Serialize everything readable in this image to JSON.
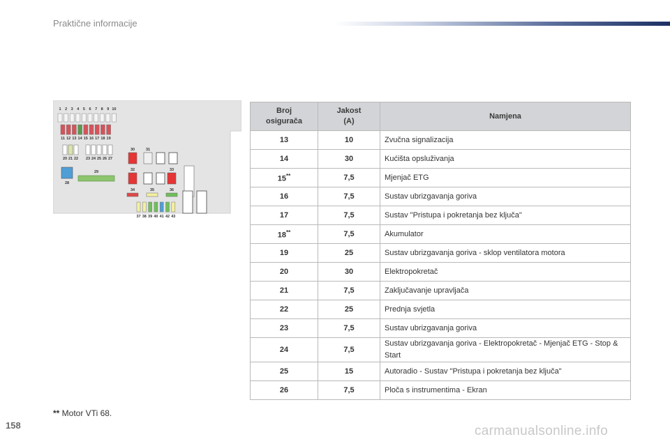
{
  "header": {
    "title": "Praktične informacije"
  },
  "page_number": "158",
  "colors": {
    "header_bar_dark": "#1b2f63",
    "table_header_bg": "#d3d4d7"
  },
  "diagram": {
    "top_row_labels": [
      "1",
      "2",
      "3",
      "4",
      "5",
      "6",
      "7",
      "8",
      "9",
      "10"
    ],
    "second_row_labels": [
      "11",
      "12",
      "13",
      "14",
      "15",
      "16",
      "17",
      "18",
      "19"
    ],
    "third_row_labels": [
      "20",
      "21",
      "22",
      "23",
      "24",
      "25",
      "26",
      "27"
    ],
    "label_28": "28",
    "label_29": "29",
    "right_labels": [
      "30",
      "31",
      "32",
      "33",
      "34",
      "35",
      "36"
    ],
    "bottom_labels": [
      "37",
      "38",
      "39",
      "40",
      "41",
      "42",
      "43"
    ]
  },
  "table": {
    "headers": {
      "col1": "Broj osigurača",
      "col2": "Jakost (A)",
      "col3": "Namjena"
    },
    "rows": [
      {
        "num": "13",
        "amp": "10",
        "use": "Zvučna signalizacija"
      },
      {
        "num": "14",
        "amp": "30",
        "use": "Kućišta opsluživanja"
      },
      {
        "num": "15",
        "mark": "**",
        "amp": "7,5",
        "use": "Mjenjač ETG"
      },
      {
        "num": "16",
        "amp": "7,5",
        "use": "Sustav ubrizgavanja goriva"
      },
      {
        "num": "17",
        "amp": "7,5",
        "use": "Sustav \"Pristupa i pokretanja bez ključa\""
      },
      {
        "num": "18",
        "mark": "**",
        "amp": "7,5",
        "use": "Akumulator"
      },
      {
        "num": "19",
        "amp": "25",
        "use": "Sustav ubrizgavanja goriva - sklop ventilatora motora"
      },
      {
        "num": "20",
        "amp": "30",
        "use": "Elektropokretač"
      },
      {
        "num": "21",
        "amp": "7,5",
        "use": "Zaključavanje upravljača"
      },
      {
        "num": "22",
        "amp": "25",
        "use": "Prednja svjetla"
      },
      {
        "num": "23",
        "amp": "7,5",
        "use": "Sustav ubrizgavanja goriva"
      },
      {
        "num": "24",
        "amp": "7,5",
        "use": "Sustav ubrizgavanja goriva - Elektropokretač - Mjenjač ETG - Stop & Start"
      },
      {
        "num": "25",
        "amp": "15",
        "use": "Autoradio - Sustav \"Pristupa i pokretanja bez ključa\""
      },
      {
        "num": "26",
        "amp": "7,5",
        "use": "Ploča s instrumentima - Ekran"
      }
    ]
  },
  "footnote": {
    "stars": "**",
    "text": " Motor VTi 68."
  },
  "watermark": "carmanualsonline.info"
}
